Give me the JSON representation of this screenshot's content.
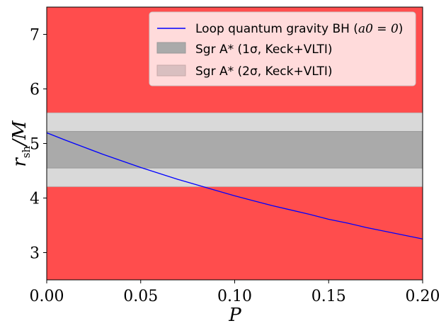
{
  "chart_data": {
    "type": "line",
    "title": "",
    "xlabel": "P",
    "ylabel": "r_sh/M",
    "ylabel_main": "r",
    "ylabel_sub": "sh",
    "ylabel_rest": "/M",
    "xlim": [
      0,
      0.2
    ],
    "ylim": [
      2.5,
      7.5
    ],
    "xticks": [
      0.0,
      0.05,
      0.1,
      0.15,
      0.2
    ],
    "xtick_labels": [
      "0.00",
      "0.05",
      "0.10",
      "0.15",
      "0.20"
    ],
    "yticks": [
      3,
      4,
      5,
      6,
      7
    ],
    "ytick_labels": [
      "3",
      "4",
      "5",
      "6",
      "7"
    ],
    "grid": false,
    "legend_position": "top-right",
    "background_color": "#ff4d4d",
    "bands": [
      {
        "name": "Sgr A* (2σ, Keck+VLTI)",
        "y_range": [
          4.21,
          5.56
        ],
        "color": "#d9d9d9"
      },
      {
        "name": "Sgr A* (1σ, Keck+VLTI)",
        "y_range": [
          4.55,
          5.22
        ],
        "color": "#aaaaaa"
      }
    ],
    "series": [
      {
        "name": "Loop quantum gravity BH (a0 = 0)",
        "color": "#0000ff",
        "x": [
          0.0,
          0.01,
          0.02,
          0.03,
          0.04,
          0.05,
          0.06,
          0.07,
          0.08,
          0.09,
          0.1,
          0.11,
          0.12,
          0.13,
          0.14,
          0.15,
          0.16,
          0.17,
          0.18,
          0.19,
          0.2
        ],
        "y": [
          5.196,
          5.06,
          4.93,
          4.8,
          4.68,
          4.56,
          4.45,
          4.34,
          4.24,
          4.14,
          4.04,
          3.95,
          3.86,
          3.78,
          3.7,
          3.61,
          3.54,
          3.46,
          3.39,
          3.32,
          3.25
        ]
      }
    ],
    "legend": [
      {
        "kind": "line",
        "color": "#0000ff",
        "label_text": "Loop quantum gravity BH (",
        "label_math": "a0 = 0",
        "label_close": ")"
      },
      {
        "kind": "patch",
        "color": "#aaaaaa",
        "label_text": "Sgr A* (1σ, Keck+VLTI)"
      },
      {
        "kind": "patch",
        "color": "#d9d9d9",
        "label_text": "Sgr A* (2σ, Keck+VLTI)"
      }
    ]
  }
}
